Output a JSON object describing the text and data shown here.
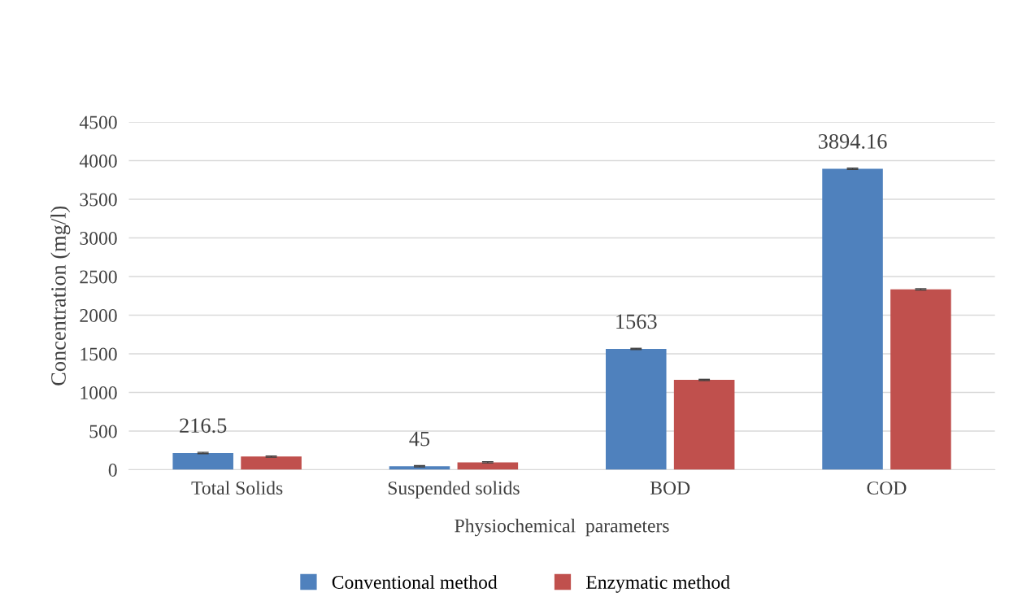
{
  "chart_data": {
    "type": "bar",
    "xlabel": "Physiochemical  parameters",
    "ylabel": "Concentration (mg/l)",
    "categories": [
      "Total Solids",
      "Suspended solids",
      "BOD",
      "COD"
    ],
    "series": [
      {
        "name": "Conventional method",
        "color": "#4f81bd",
        "values": [
          216.5,
          45,
          1563,
          3894.16
        ],
        "errors": [
          8,
          8,
          8,
          8
        ],
        "value_labels": [
          "216.5",
          "45",
          "1563",
          "3894.16"
        ]
      },
      {
        "name": "Enzymatic method",
        "color": "#c0504d",
        "values": [
          170,
          96,
          1162,
          2335
        ],
        "errors": [
          8,
          8,
          8,
          8
        ]
      }
    ],
    "ylim": [
      0,
      4500
    ],
    "yticks": [
      0,
      500,
      1000,
      1500,
      2000,
      2500,
      3000,
      3500,
      4000,
      4500
    ],
    "grid": "y",
    "legend": "bottom"
  }
}
